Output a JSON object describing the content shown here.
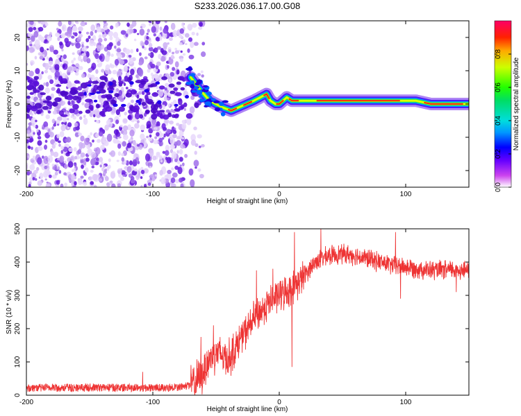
{
  "title": "S233.2026.036.17.00.G08",
  "chart_data": [
    {
      "type": "heatmap",
      "name": "spectrogram",
      "xlabel": "Height of straight line (km)",
      "ylabel": "Frequency (Hz)",
      "xlim": [
        -200,
        150
      ],
      "ylim": [
        -25,
        25
      ],
      "xticks": [
        -200,
        -100,
        0,
        100
      ],
      "yticks": [
        20,
        10,
        0,
        -10,
        -20
      ],
      "colorbar": {
        "label": "Normalized spectral amplitude",
        "range": [
          0,
          1
        ],
        "ticks": [
          0.0,
          0.2,
          0.4,
          0.6,
          0.8
        ]
      },
      "ridge": {
        "x": [
          -70,
          -62,
          -55,
          -45,
          -38,
          -32,
          -26,
          -20,
          -15,
          -10,
          -7,
          -3,
          0,
          3,
          6,
          10,
          20,
          40,
          80,
          108,
          120,
          150
        ],
        "y": [
          8,
          4,
          1,
          -1,
          -2,
          -1,
          0,
          1,
          2,
          3,
          1,
          0,
          0,
          1,
          2,
          1,
          1,
          1,
          1,
          1,
          0,
          0
        ]
      }
    },
    {
      "type": "line",
      "name": "snr",
      "xlabel": "Height of straight line (km)",
      "ylabel": "SNR (10 * v/v)",
      "xlim": [
        -200,
        150
      ],
      "ylim": [
        0,
        500
      ],
      "xticks": [
        -200,
        -100,
        0,
        100
      ],
      "yticks": [
        500,
        400,
        300,
        200,
        100,
        0
      ],
      "color": "#ee3333",
      "envelope": {
        "x": [
          -200,
          -150,
          -100,
          -80,
          -70,
          -62,
          -55,
          -50,
          -45,
          -40,
          -35,
          -30,
          -25,
          -20,
          -15,
          -10,
          -5,
          0,
          5,
          10,
          15,
          20,
          25,
          30,
          40,
          50,
          60,
          70,
          80,
          90,
          100,
          110,
          120,
          130,
          140,
          150
        ],
        "y": [
          22,
          23,
          22,
          24,
          30,
          55,
          110,
          130,
          120,
          110,
          140,
          175,
          200,
          230,
          250,
          270,
          290,
          300,
          310,
          320,
          340,
          360,
          385,
          405,
          420,
          425,
          420,
          410,
          400,
          390,
          385,
          380,
          375,
          375,
          378,
          375
        ]
      },
      "spikes": [
        [
          -108,
          70
        ],
        [
          -62,
          175
        ],
        [
          -52,
          210
        ],
        [
          -18,
          375
        ],
        [
          -5,
          380
        ],
        [
          12,
          490
        ],
        [
          10,
          85
        ],
        [
          33,
          500
        ],
        [
          92,
          490
        ],
        [
          96,
          290
        ],
        [
          140,
          310
        ]
      ]
    }
  ]
}
